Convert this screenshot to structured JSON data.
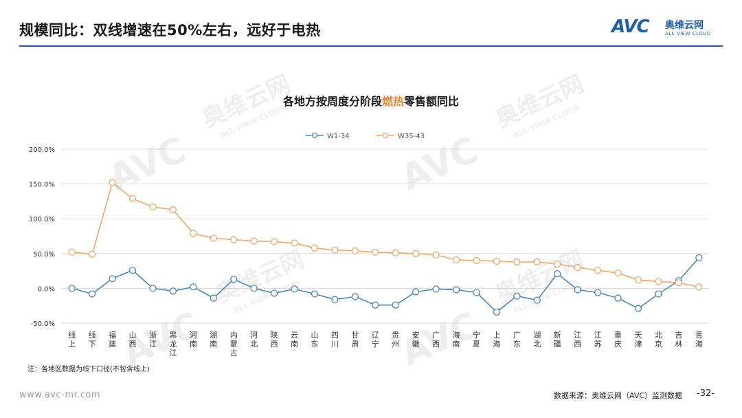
{
  "header": {
    "title": "规模同比：双线增速在50%左右，远好于电热",
    "logo_mark": "AVC",
    "logo_cn": "奥维云网",
    "logo_en": "ALL VIEW CLOUD"
  },
  "watermark": {
    "mark": "AVC",
    "cn": "奥维云网",
    "en": "ALL VIEW CLOUD"
  },
  "chart_data": {
    "type": "line",
    "title_prefix": "各地方按周度分阶段",
    "title_highlight": "燃热",
    "title_suffix": "零售额同比",
    "categories": [
      "线上",
      "线下",
      "福建",
      "山西",
      "浙江",
      "黑龙江",
      "河南",
      "湖南",
      "内蒙古",
      "河北",
      "陕西",
      "云南",
      "山东",
      "四川",
      "甘肃",
      "辽宁",
      "贵州",
      "安徽",
      "广西",
      "海南",
      "宁夏",
      "上海",
      "广东",
      "湖北",
      "新疆",
      "江西",
      "江苏",
      "重庆",
      "天津",
      "北京",
      "吉林",
      "青海"
    ],
    "series": [
      {
        "name": "W1-34",
        "color": "#4a86c0",
        "values": [
          0,
          -8,
          14,
          26,
          0,
          -4,
          2,
          -14,
          13,
          0,
          -7,
          -1,
          -8,
          -16,
          -12,
          -24,
          -24,
          -5,
          -1,
          -2,
          -6,
          -34,
          -11,
          -17,
          21,
          -2,
          -6,
          -14,
          -29,
          -8,
          11,
          44
        ]
      },
      {
        "name": "W35-43",
        "color": "#f0a86a",
        "values": [
          52,
          49,
          152,
          129,
          117,
          113,
          79,
          72,
          70,
          68,
          67,
          65,
          58,
          55,
          54,
          52,
          51,
          50,
          48,
          41,
          40,
          39,
          38,
          38,
          35,
          30,
          26,
          22,
          12,
          10,
          8,
          2
        ]
      }
    ],
    "y_ticks": [
      "200.0%",
      "150.0%",
      "100.0%",
      "50.0%",
      "0.0%",
      "-50.0%"
    ],
    "ylim": [
      -50,
      200
    ],
    "legend_position": "top",
    "grid": true
  },
  "footer": {
    "note": "注：各地区数据为线下口径(不包含线上)",
    "site": "www.avc-mr.com",
    "source": "数据来源：奥维云网（AVC）监测数据",
    "page": "-32-"
  }
}
